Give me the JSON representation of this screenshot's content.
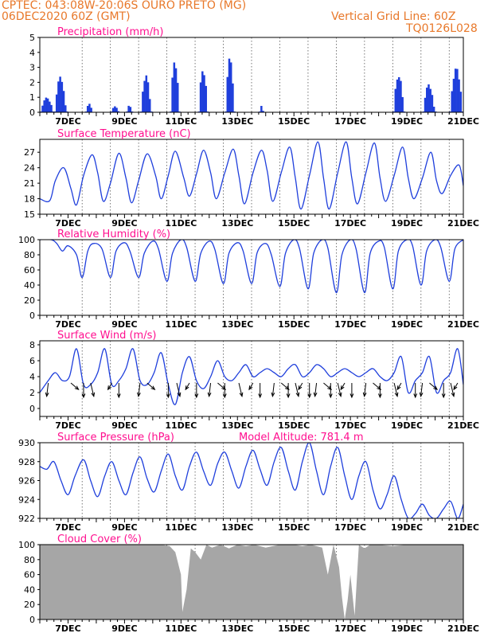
{
  "header": {
    "line1": "CPTEC:   043:08W-20:06S   OURO PRETO (MG)",
    "line2": "06DEC2020 60Z (GMT)",
    "grid_note": "Vertical Grid Line: 60Z",
    "code": "TQ0126L028"
  },
  "colors": {
    "header": "#e8782a",
    "panel_title": "#ff0f8f",
    "series": "#1f3fdc",
    "bars": "#1f3fdc",
    "cloud": "#a6a6a6",
    "grid": "#555555",
    "axis": "#000000"
  },
  "chart_data": [
    {
      "type": "bar",
      "title": "Precipitation (mm/h)",
      "x_tick_labels": [
        "7DEC",
        "9DEC",
        "11DEC",
        "13DEC",
        "15DEC",
        "17DEC",
        "19DEC",
        "21DEC"
      ],
      "y_ticks": [
        0,
        1,
        2,
        3,
        4,
        5
      ],
      "ylim": [
        0,
        5
      ],
      "x_range_days": [
        6.0,
        21.0
      ],
      "grid": "vertical dotted",
      "rain_events": [
        {
          "start": 6.0,
          "end": 6.5,
          "peak": 1.0
        },
        {
          "start": 6.5,
          "end": 6.95,
          "peak": 2.4
        },
        {
          "start": 7.6,
          "end": 7.85,
          "peak": 0.6
        },
        {
          "start": 8.5,
          "end": 8.8,
          "peak": 0.4
        },
        {
          "start": 9.05,
          "end": 9.25,
          "peak": 0.5
        },
        {
          "start": 9.55,
          "end": 9.95,
          "peak": 2.5
        },
        {
          "start": 10.6,
          "end": 10.95,
          "peak": 3.5
        },
        {
          "start": 11.6,
          "end": 11.95,
          "peak": 3.0
        },
        {
          "start": 12.55,
          "end": 12.9,
          "peak": 3.7
        },
        {
          "start": 13.75,
          "end": 13.9,
          "peak": 0.5
        },
        {
          "start": 18.5,
          "end": 18.9,
          "peak": 2.6
        },
        {
          "start": 19.55,
          "end": 20.0,
          "peak": 1.9
        },
        {
          "start": 20.5,
          "end": 21.0,
          "peak": 3.0
        }
      ]
    },
    {
      "type": "line",
      "title": "Surface Temperature (nC)",
      "x_tick_labels": [
        "7DEC",
        "9DEC",
        "11DEC",
        "13DEC",
        "15DEC",
        "17DEC",
        "19DEC",
        "21DEC"
      ],
      "y_ticks": [
        15,
        18,
        21,
        24,
        27
      ],
      "ylim": [
        15,
        29.5
      ],
      "grid": "vertical dotted",
      "x": [
        6.0,
        6.35,
        6.55,
        6.85,
        7.1,
        7.3,
        7.55,
        7.85,
        8.05,
        8.25,
        8.5,
        8.8,
        9.05,
        9.25,
        9.5,
        9.8,
        10.1,
        10.3,
        10.55,
        10.8,
        11.1,
        11.3,
        11.55,
        11.8,
        12.05,
        12.25,
        12.55,
        12.85,
        13.05,
        13.25,
        13.55,
        13.85,
        14.05,
        14.25,
        14.55,
        14.85,
        15.05,
        15.25,
        15.55,
        15.85,
        16.05,
        16.25,
        16.55,
        16.85,
        17.05,
        17.25,
        17.55,
        17.85,
        18.05,
        18.25,
        18.55,
        18.85,
        19.05,
        19.25,
        19.55,
        19.85,
        20.05,
        20.25,
        20.55,
        20.85,
        21.0
      ],
      "values": [
        18.0,
        17.6,
        21.5,
        24.0,
        20.0,
        16.8,
        22.5,
        26.5,
        23.0,
        17.5,
        21.0,
        26.8,
        22.0,
        17.2,
        21.5,
        26.7,
        22.5,
        18.0,
        22.5,
        27.2,
        22.0,
        18.5,
        22.8,
        27.4,
        23.0,
        18.0,
        23.0,
        27.6,
        22.5,
        17.0,
        23.0,
        27.4,
        23.5,
        17.5,
        23.0,
        28.0,
        22.0,
        16.0,
        22.5,
        29.0,
        22.0,
        16.0,
        23.0,
        29.0,
        22.0,
        17.0,
        23.0,
        28.8,
        22.0,
        17.5,
        22.5,
        28.0,
        22.0,
        18.0,
        22.0,
        27.0,
        21.5,
        19.0,
        22.5,
        24.5,
        20.5
      ]
    },
    {
      "type": "line",
      "title": "Relative Humidity (%)",
      "x_tick_labels": [
        "7DEC",
        "9DEC",
        "11DEC",
        "13DEC",
        "15DEC",
        "17DEC",
        "19DEC",
        "21DEC"
      ],
      "y_ticks": [
        0,
        20,
        40,
        60,
        80,
        100
      ],
      "ylim": [
        0,
        100
      ],
      "grid": "vertical dotted",
      "x": [
        6.0,
        6.4,
        6.6,
        6.8,
        7.0,
        7.3,
        7.5,
        7.7,
        7.9,
        8.2,
        8.5,
        8.7,
        9.0,
        9.2,
        9.5,
        9.7,
        10.0,
        10.2,
        10.5,
        10.7,
        11.0,
        11.2,
        11.5,
        11.7,
        12.0,
        12.2,
        12.5,
        12.7,
        13.0,
        13.2,
        13.5,
        13.7,
        14.0,
        14.2,
        14.5,
        14.7,
        15.0,
        15.2,
        15.5,
        15.7,
        16.0,
        16.2,
        16.5,
        16.7,
        17.0,
        17.2,
        17.5,
        17.7,
        18.0,
        18.2,
        18.5,
        18.7,
        19.0,
        19.2,
        19.5,
        19.7,
        20.0,
        20.2,
        20.5,
        20.7,
        21.0
      ],
      "values": [
        100,
        100,
        95,
        85,
        92,
        80,
        50,
        85,
        95,
        88,
        50,
        85,
        96,
        84,
        50,
        82,
        98,
        88,
        45,
        82,
        100,
        90,
        45,
        82,
        98,
        87,
        42,
        82,
        96,
        85,
        42,
        83,
        95,
        80,
        38,
        82,
        100,
        88,
        35,
        82,
        100,
        89,
        30,
        80,
        100,
        88,
        30,
        82,
        98,
        90,
        35,
        85,
        100,
        92,
        40,
        85,
        100,
        90,
        45,
        88,
        100
      ]
    },
    {
      "type": "line",
      "title": "Surface Wind (m/s)",
      "x_tick_labels": [
        "7DEC",
        "9DEC",
        "11DEC",
        "13DEC",
        "15DEC",
        "17DEC",
        "19DEC",
        "21DEC"
      ],
      "y_ticks": [
        0,
        2,
        4,
        6,
        8
      ],
      "ylim": [
        -1,
        8.5
      ],
      "grid": "vertical dotted",
      "x": [
        6.0,
        6.3,
        6.55,
        6.8,
        7.05,
        7.3,
        7.55,
        7.8,
        8.05,
        8.3,
        8.55,
        8.8,
        9.05,
        9.3,
        9.55,
        9.8,
        10.05,
        10.3,
        10.55,
        10.8,
        11.05,
        11.3,
        11.55,
        11.8,
        12.05,
        12.3,
        12.55,
        12.8,
        13.05,
        13.3,
        13.55,
        13.8,
        14.05,
        14.3,
        14.55,
        14.8,
        15.05,
        15.3,
        15.55,
        15.8,
        16.05,
        16.3,
        16.55,
        16.8,
        17.05,
        17.3,
        17.55,
        17.8,
        18.05,
        18.3,
        18.55,
        18.8,
        19.05,
        19.3,
        19.55,
        19.8,
        20.05,
        20.3,
        20.55,
        20.8,
        21.0
      ],
      "values": [
        2.0,
        3.5,
        4.5,
        3.5,
        4.0,
        7.5,
        3.0,
        3.0,
        4.5,
        7.5,
        3.0,
        3.5,
        5.0,
        7.5,
        3.5,
        3.0,
        4.5,
        7.0,
        3.0,
        0.5,
        4.5,
        6.5,
        3.5,
        2.5,
        4.0,
        6.0,
        4.0,
        3.5,
        4.5,
        5.5,
        4.0,
        4.5,
        5.0,
        4.5,
        4.0,
        5.0,
        5.5,
        4.0,
        4.5,
        5.5,
        5.0,
        4.0,
        4.5,
        5.0,
        4.5,
        4.0,
        4.5,
        5.0,
        4.0,
        3.5,
        4.5,
        6.5,
        2.0,
        3.5,
        4.5,
        6.5,
        2.0,
        3.5,
        4.5,
        7.5,
        3.0
      ]
    },
    {
      "type": "line",
      "title": "Surface Pressure (hPa)",
      "annotation": "Model Altitude: 781.4  m",
      "x_tick_labels": [
        "7DEC",
        "9DEC",
        "11DEC",
        "13DEC",
        "15DEC",
        "17DEC",
        "19DEC",
        "21DEC"
      ],
      "y_ticks": [
        922,
        924,
        926,
        928,
        930
      ],
      "ylim": [
        922,
        930
      ],
      "grid": "vertical dotted",
      "x": [
        6.0,
        6.25,
        6.5,
        6.75,
        7.0,
        7.25,
        7.55,
        7.8,
        8.05,
        8.3,
        8.55,
        8.8,
        9.05,
        9.3,
        9.55,
        9.8,
        10.05,
        10.3,
        10.55,
        10.8,
        11.05,
        11.3,
        11.55,
        11.8,
        12.05,
        12.3,
        12.55,
        12.8,
        13.05,
        13.3,
        13.55,
        13.8,
        14.05,
        14.3,
        14.55,
        14.8,
        15.05,
        15.3,
        15.55,
        15.8,
        16.05,
        16.3,
        16.55,
        16.8,
        17.05,
        17.3,
        17.55,
        17.8,
        18.05,
        18.3,
        18.55,
        18.8,
        19.05,
        19.3,
        19.55,
        19.8,
        20.05,
        20.3,
        20.55,
        20.8,
        21.0
      ],
      "values": [
        927.5,
        927.2,
        928.0,
        926.0,
        924.5,
        926.5,
        928.2,
        926.0,
        924.3,
        926.5,
        928.0,
        926.0,
        924.5,
        926.8,
        928.5,
        926.2,
        924.8,
        927.0,
        928.8,
        926.5,
        925.0,
        927.5,
        929.0,
        927.0,
        925.5,
        927.8,
        929.0,
        927.0,
        925.2,
        927.5,
        929.2,
        927.2,
        925.5,
        928.0,
        929.5,
        927.0,
        925.0,
        928.0,
        930.0,
        927.0,
        924.5,
        927.5,
        929.5,
        926.5,
        924.0,
        926.5,
        928.0,
        925.0,
        923.0,
        924.5,
        926.5,
        924.0,
        922.0,
        922.5,
        923.5,
        922.3,
        922.0,
        923.0,
        923.8,
        922.0,
        923.5
      ]
    },
    {
      "type": "area",
      "title": "Cloud Cover (%)",
      "x_tick_labels": [
        "7DEC",
        "9DEC",
        "11DEC",
        "13DEC",
        "15DEC",
        "17DEC",
        "19DEC",
        "21DEC"
      ],
      "y_ticks": [
        0,
        20,
        40,
        60,
        80,
        100
      ],
      "ylim": [
        0,
        100
      ],
      "grid": "vertical dotted",
      "x": [
        6.0,
        10.3,
        10.6,
        10.8,
        11.0,
        11.05,
        11.2,
        11.35,
        11.5,
        11.7,
        11.9,
        12.1,
        12.4,
        12.7,
        13.0,
        13.3,
        13.6,
        14.0,
        14.5,
        15.0,
        15.3,
        15.6,
        16.0,
        16.2,
        16.4,
        16.6,
        16.7,
        16.8,
        16.9,
        17.0,
        17.15,
        17.3,
        17.5,
        17.7,
        18.0,
        18.5,
        19.0,
        19.5,
        20.0,
        20.5,
        21.0
      ],
      "values": [
        100,
        100,
        98,
        90,
        60,
        10,
        40,
        95,
        90,
        80,
        100,
        96,
        100,
        95,
        100,
        98,
        100,
        96,
        100,
        100,
        98,
        100,
        96,
        60,
        100,
        70,
        30,
        0,
        25,
        60,
        5,
        100,
        95,
        100,
        100,
        98,
        100,
        100,
        100,
        100,
        100
      ]
    }
  ]
}
